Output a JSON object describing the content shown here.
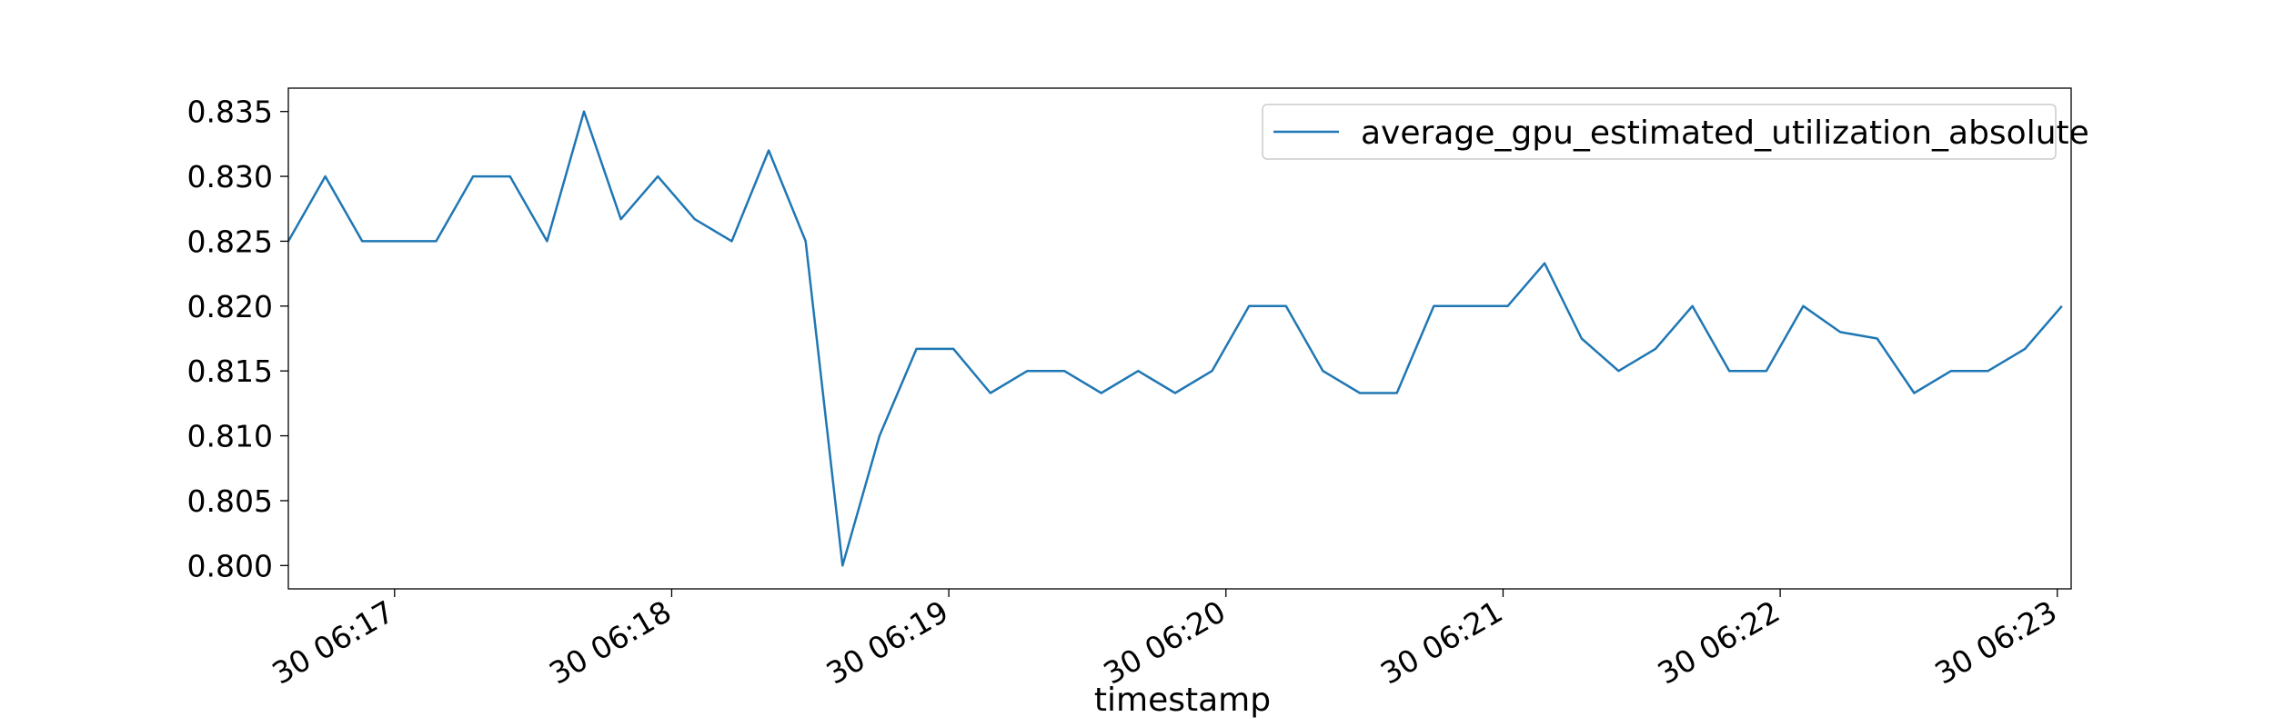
{
  "chart_data": {
    "type": "line",
    "title": "",
    "xlabel": "timestamp",
    "ylabel": "",
    "x_unit": "minute",
    "x_range": [
      "30 06:16:37",
      "30 06:23:03"
    ],
    "xticks": [
      {
        "x": "30 06:17:00",
        "label": "30 06:17"
      },
      {
        "x": "30 06:18:00",
        "label": "30 06:18"
      },
      {
        "x": "30 06:19:00",
        "label": "30 06:19"
      },
      {
        "x": "30 06:20:00",
        "label": "30 06:20"
      },
      {
        "x": "30 06:21:00",
        "label": "30 06:21"
      },
      {
        "x": "30 06:22:00",
        "label": "30 06:22"
      },
      {
        "x": "30 06:23:00",
        "label": "30 06:23"
      }
    ],
    "ylim": [
      0.7982,
      0.8368
    ],
    "yticks": [
      "0.800",
      "0.805",
      "0.810",
      "0.815",
      "0.820",
      "0.825",
      "0.830",
      "0.835"
    ],
    "grid": false,
    "legend": {
      "placement": "top-right"
    },
    "colors": {
      "line": "#1f77b4",
      "axis": "#000000",
      "background": "#ffffff"
    },
    "series": [
      {
        "name": "average_gpu_estimated_utilization_absolute",
        "x": [
          "30 06:16:37",
          "30 06:16:45",
          "30 06:16:53",
          "30 06:17:01",
          "30 06:17:09",
          "30 06:17:17",
          "30 06:17:25",
          "30 06:17:33",
          "30 06:17:41",
          "30 06:17:49",
          "30 06:17:57",
          "30 06:18:05",
          "30 06:18:13",
          "30 06:18:21",
          "30 06:18:29",
          "30 06:18:37",
          "30 06:18:45",
          "30 06:18:53",
          "30 06:19:01",
          "30 06:19:09",
          "30 06:19:17",
          "30 06:19:25",
          "30 06:19:33",
          "30 06:19:41",
          "30 06:19:49",
          "30 06:19:57",
          "30 06:20:05",
          "30 06:20:13",
          "30 06:20:21",
          "30 06:20:29",
          "30 06:20:37",
          "30 06:20:45",
          "30 06:20:53",
          "30 06:21:01",
          "30 06:21:09",
          "30 06:21:17",
          "30 06:21:25",
          "30 06:21:33",
          "30 06:21:41",
          "30 06:21:49",
          "30 06:21:57",
          "30 06:22:05",
          "30 06:22:13",
          "30 06:22:21",
          "30 06:22:29",
          "30 06:22:37",
          "30 06:22:45",
          "30 06:22:53",
          "30 06:23:01"
        ],
        "y": [
          0.825,
          0.83,
          0.825,
          0.825,
          0.825,
          0.83,
          0.83,
          0.825,
          0.835,
          0.8267,
          0.83,
          0.8267,
          0.825,
          0.832,
          0.825,
          0.8,
          0.81,
          0.8167,
          0.8167,
          0.8133,
          0.815,
          0.815,
          0.8133,
          0.815,
          0.8133,
          0.815,
          0.82,
          0.82,
          0.815,
          0.8133,
          0.8133,
          0.82,
          0.82,
          0.82,
          0.8233,
          0.8175,
          0.815,
          0.8167,
          0.82,
          0.815,
          0.815,
          0.82,
          0.818,
          0.8175,
          0.8133,
          0.815,
          0.815,
          0.8167,
          0.82
        ]
      }
    ]
  }
}
